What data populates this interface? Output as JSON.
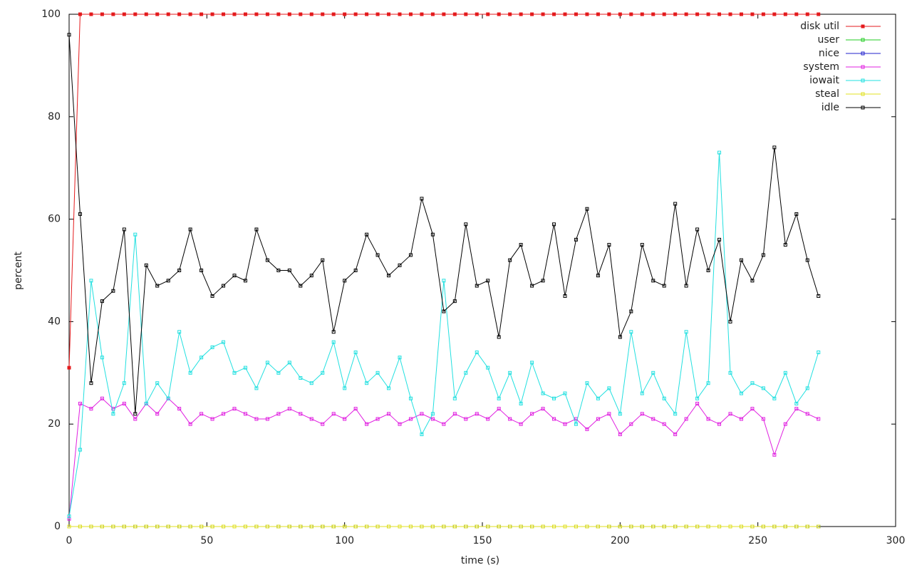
{
  "chart_data": {
    "type": "line",
    "xlabel": "time (s)",
    "ylabel": "percent",
    "x": [
      0,
      4,
      8,
      12,
      16,
      20,
      24,
      28,
      32,
      36,
      40,
      44,
      48,
      52,
      56,
      60,
      64,
      68,
      72,
      76,
      80,
      84,
      88,
      92,
      96,
      100,
      104,
      108,
      112,
      116,
      120,
      124,
      128,
      132,
      136,
      140,
      144,
      148,
      152,
      156,
      160,
      164,
      168,
      172,
      176,
      180,
      184,
      188,
      192,
      196,
      200,
      204,
      208,
      212,
      216,
      220,
      224,
      228,
      232,
      236,
      240,
      244,
      248,
      252,
      256,
      260,
      264,
      268,
      272
    ],
    "xlim": [
      0,
      300
    ],
    "xticks": [
      0,
      50,
      100,
      150,
      200,
      250,
      300
    ],
    "ylim": [
      0,
      100
    ],
    "yticks": [
      0,
      20,
      40,
      60,
      80,
      100
    ],
    "legend": "top-right",
    "series": [
      {
        "name": "disk util",
        "color": "#e41a1c",
        "filled": true,
        "values": [
          31,
          100,
          100,
          100,
          100,
          100,
          100,
          100,
          100,
          100,
          100,
          100,
          100,
          100,
          100,
          100,
          100,
          100,
          100,
          100,
          100,
          100,
          100,
          100,
          100,
          100,
          100,
          100,
          100,
          100,
          100,
          100,
          100,
          100,
          100,
          100,
          100,
          100,
          100,
          100,
          100,
          100,
          100,
          100,
          100,
          100,
          100,
          100,
          100,
          100,
          100,
          100,
          100,
          100,
          100,
          100,
          100,
          100,
          100,
          100,
          100,
          100,
          100,
          100,
          100,
          100,
          100,
          100,
          100
        ]
      },
      {
        "name": "user",
        "color": "#22cc22",
        "values": [
          0,
          0,
          0,
          0,
          0,
          0,
          0,
          0,
          0,
          0,
          0,
          0,
          0,
          0,
          0,
          0,
          0,
          0,
          0,
          0,
          0,
          0,
          0,
          0,
          0,
          0,
          0,
          0,
          0,
          0,
          0,
          0,
          0,
          0,
          0,
          0,
          0,
          0,
          0,
          0,
          0,
          0,
          0,
          0,
          0,
          0,
          0,
          0,
          0,
          0,
          0,
          0,
          0,
          0,
          0,
          0,
          0,
          0,
          0,
          0,
          0,
          0,
          0,
          0,
          0,
          0,
          0,
          0,
          0
        ]
      },
      {
        "name": "nice",
        "color": "#2222cc",
        "values": [
          0,
          0,
          0,
          0,
          0,
          0,
          0,
          0,
          0,
          0,
          0,
          0,
          0,
          0,
          0,
          0,
          0,
          0,
          0,
          0,
          0,
          0,
          0,
          0,
          0,
          0,
          0,
          0,
          0,
          0,
          0,
          0,
          0,
          0,
          0,
          0,
          0,
          0,
          0,
          0,
          0,
          0,
          0,
          0,
          0,
          0,
          0,
          0,
          0,
          0,
          0,
          0,
          0,
          0,
          0,
          0,
          0,
          0,
          0,
          0,
          0,
          0,
          0,
          0,
          0,
          0,
          0,
          0,
          0
        ]
      },
      {
        "name": "system",
        "color": "#e020e0",
        "values": [
          1.5,
          24,
          23,
          25,
          23,
          24,
          21,
          24,
          22,
          25,
          23,
          20,
          22,
          21,
          22,
          23,
          22,
          21,
          21,
          22,
          23,
          22,
          21,
          20,
          22,
          21,
          23,
          20,
          21,
          22,
          20,
          21,
          22,
          21,
          20,
          22,
          21,
          22,
          21,
          23,
          21,
          20,
          22,
          23,
          21,
          20,
          21,
          19,
          21,
          22,
          18,
          20,
          22,
          21,
          20,
          18,
          21,
          24,
          21,
          20,
          22,
          21,
          23,
          21,
          14,
          20,
          23,
          22,
          21
        ]
      },
      {
        "name": "iowait",
        "color": "#22e0e0",
        "values": [
          2,
          15,
          48,
          33,
          22,
          28,
          57,
          24,
          28,
          25,
          38,
          30,
          33,
          35,
          36,
          30,
          31,
          27,
          32,
          30,
          32,
          29,
          28,
          30,
          36,
          27,
          34,
          28,
          30,
          27,
          33,
          25,
          18,
          22,
          48,
          25,
          30,
          34,
          31,
          25,
          30,
          24,
          32,
          26,
          25,
          26,
          20,
          28,
          25,
          27,
          22,
          38,
          26,
          30,
          25,
          22,
          38,
          25,
          28,
          73,
          30,
          26,
          28,
          27,
          25,
          30,
          24,
          27,
          34
        ]
      },
      {
        "name": "steal",
        "color": "#e0e020",
        "values": [
          0,
          0,
          0,
          0,
          0,
          0,
          0,
          0,
          0,
          0,
          0,
          0,
          0,
          0,
          0,
          0,
          0,
          0,
          0,
          0,
          0,
          0,
          0,
          0,
          0,
          0,
          0,
          0,
          0,
          0,
          0,
          0,
          0,
          0,
          0,
          0,
          0,
          0,
          0,
          0,
          0,
          0,
          0,
          0,
          0,
          0,
          0,
          0,
          0,
          0,
          0,
          0,
          0,
          0,
          0,
          0,
          0,
          0,
          0,
          0,
          0,
          0,
          0,
          0,
          0,
          0,
          0,
          0,
          0
        ]
      },
      {
        "name": "idle",
        "color": "#000000",
        "values": [
          96,
          61,
          28,
          44,
          46,
          58,
          22,
          51,
          47,
          48,
          50,
          58,
          50,
          45,
          47,
          49,
          48,
          58,
          52,
          50,
          50,
          47,
          49,
          52,
          38,
          48,
          50,
          57,
          53,
          49,
          51,
          53,
          64,
          57,
          42,
          44,
          59,
          47,
          48,
          37,
          52,
          55,
          47,
          48,
          59,
          45,
          56,
          62,
          49,
          55,
          37,
          42,
          55,
          48,
          47,
          63,
          47,
          58,
          50,
          56,
          40,
          52,
          48,
          53,
          74,
          55,
          61,
          52,
          45
        ]
      }
    ]
  }
}
